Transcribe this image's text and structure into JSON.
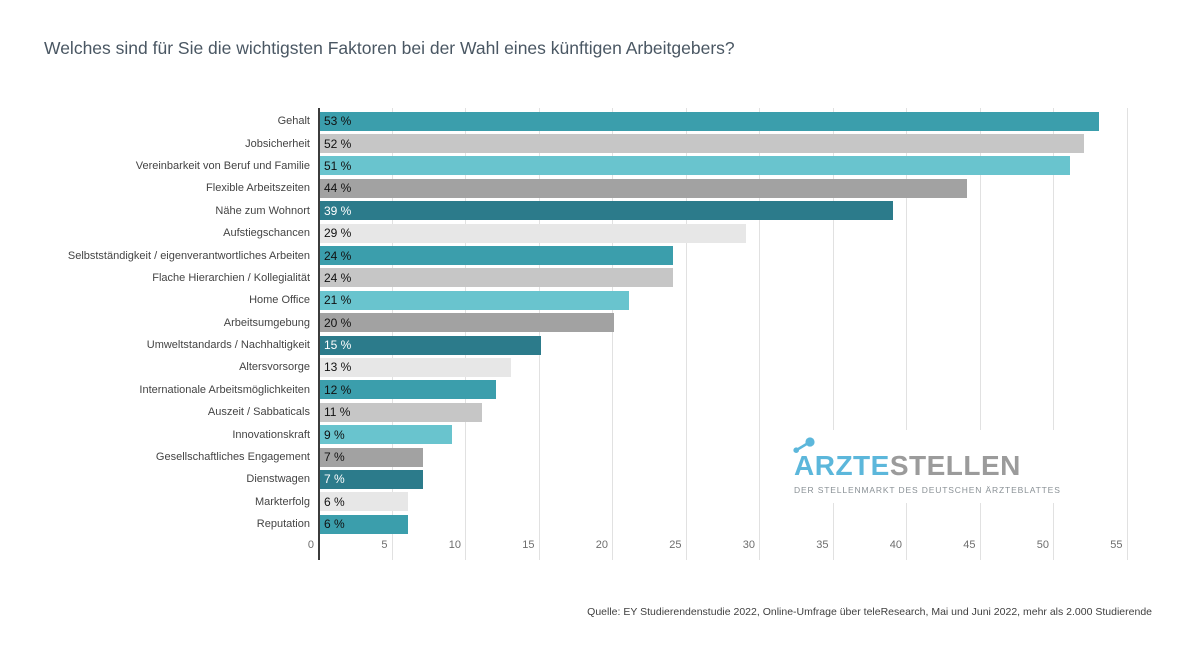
{
  "chart_data": {
    "type": "bar",
    "orientation": "horizontal",
    "title": "Welches sind für Sie die wichtigsten Faktoren bei der Wahl eines künftigen Arbeitgebers?",
    "unit": "%",
    "categories": [
      "Gehalt",
      "Jobsicherheit",
      "Vereinbarkeit von Beruf und Familie",
      "Flexible Arbeitszeiten",
      "Nähe zum Wohnort",
      "Aufstiegschancen",
      "Selbstständigkeit / eigenverantwortliches Arbeiten",
      "Flache Hierarchien / Kollegialität",
      "Home Office",
      "Arbeitsumgebung",
      "Umweltstandards / Nachhaltigkeit",
      "Altersvorsorge",
      "Internationale Arbeitsmöglichkeiten",
      "Auszeit / Sabbaticals",
      "Innovationskraft",
      "Gesellschaftliches Engagement",
      "Dienstwagen",
      "Markterfolg",
      "Reputation"
    ],
    "values": [
      53,
      52,
      51,
      44,
      39,
      29,
      24,
      24,
      21,
      20,
      15,
      13,
      12,
      11,
      9,
      7,
      7,
      6,
      6
    ],
    "value_labels": [
      "53 %",
      "52 %",
      "51 %",
      "44 %",
      "39 %",
      "29 %",
      "24 %",
      "24 %",
      "21 %",
      "20 %",
      "15 %",
      "13 %",
      "12 %",
      "11 %",
      "9 %",
      "7 %",
      "7 %",
      "6 %",
      "6 %"
    ],
    "bar_colors": [
      "#3B9EAC",
      "#C6C6C6",
      "#69C4CE",
      "#A2A2A2",
      "#2C7B8B",
      "#E7E7E7",
      "#3B9EAC",
      "#C6C6C6",
      "#69C4CE",
      "#A2A2A2",
      "#2C7B8B",
      "#E7E7E7",
      "#3B9EAC",
      "#C6C6C6",
      "#69C4CE",
      "#A2A2A2",
      "#2C7B8B",
      "#E7E7E7",
      "#3B9EAC"
    ],
    "value_text_colors": [
      "#111111",
      "#111111",
      "#111111",
      "#111111",
      "#ffffff",
      "#111111",
      "#111111",
      "#111111",
      "#111111",
      "#111111",
      "#ffffff",
      "#111111",
      "#111111",
      "#111111",
      "#111111",
      "#111111",
      "#ffffff",
      "#111111",
      "#111111"
    ],
    "palette": {
      "teal": "#3B9EAC",
      "light_gray": "#C6C6C6",
      "cyan": "#69C4CE",
      "gray": "#A2A2A2",
      "dark_teal": "#2C7B8B",
      "very_light_gray": "#E7E7E7"
    },
    "xticks": [
      0,
      5,
      10,
      15,
      20,
      25,
      30,
      35,
      40,
      45,
      50,
      55
    ],
    "xlim": [
      0,
      55
    ],
    "grid": true,
    "xlabel": "",
    "ylabel": "",
    "source": "Quelle: EY Studierendenstudie 2022, Online-Umfrage über teleResearch, Mai und Juni 2022, mehr als 2.000 Studierende"
  },
  "logo": {
    "part1": "ÄRZTE",
    "part2": "STELLEN",
    "tagline": "DER STELLENMARKT DES DEUTSCHEN ÄRZTEBLATTES",
    "blue": "#5CB7DB",
    "gray": "#9B9B9B"
  }
}
